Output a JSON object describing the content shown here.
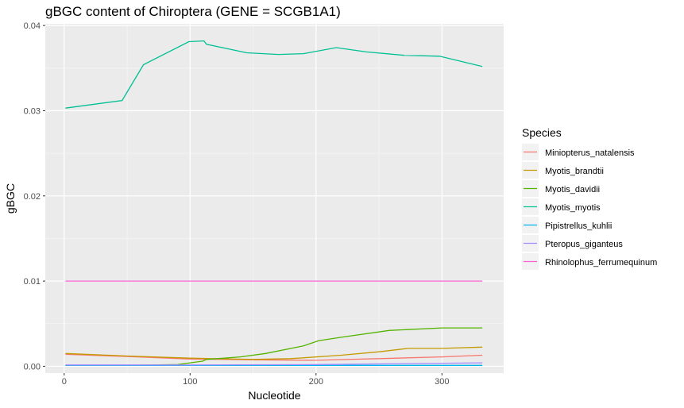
{
  "chart_data": {
    "type": "line",
    "title": "gBGC content of Chiroptera (GENE = SCGB1A1)",
    "xlabel": "Nucleotide",
    "ylabel": "gBGC",
    "xlim": [
      -15,
      349
    ],
    "ylim": [
      -0.0008,
      0.0402
    ],
    "x_ticks": [
      0,
      100,
      200,
      300
    ],
    "x_tick_labels": [
      "0",
      "100",
      "200",
      "300"
    ],
    "y_ticks": [
      0.0,
      0.01,
      0.02,
      0.03,
      0.04
    ],
    "y_tick_labels": [
      "0.00",
      "0.01",
      "0.02",
      "0.03",
      "0.04"
    ],
    "legend_title": "Species",
    "legend_position": "right",
    "grid": true,
    "series": [
      {
        "name": "Miniopterus_natalensis",
        "color": "#F8766D",
        "points": [
          [
            1,
            0.0014
          ],
          [
            50,
            0.00115
          ],
          [
            100,
            0.00085
          ],
          [
            150,
            0.00075
          ],
          [
            200,
            0.0007
          ],
          [
            250,
            0.0009
          ],
          [
            300,
            0.0011
          ],
          [
            332,
            0.0013
          ]
        ]
      },
      {
        "name": "Myotis_brandtii",
        "color": "#C49A00",
        "points": [
          [
            1,
            0.0015
          ],
          [
            50,
            0.0012
          ],
          [
            100,
            0.00095
          ],
          [
            150,
            0.0008
          ],
          [
            180,
            0.0009
          ],
          [
            220,
            0.0013
          ],
          [
            250,
            0.0017
          ],
          [
            273,
            0.0021
          ],
          [
            300,
            0.0021
          ],
          [
            332,
            0.00225
          ]
        ]
      },
      {
        "name": "Myotis_davidii",
        "color": "#53B400",
        "points": [
          [
            1,
            0.0001
          ],
          [
            50,
            0.0001
          ],
          [
            90,
            0.0002
          ],
          [
            110,
            0.0006
          ],
          [
            113,
            0.0008
          ],
          [
            140,
            0.0011
          ],
          [
            160,
            0.0015
          ],
          [
            190,
            0.0024
          ],
          [
            202,
            0.003
          ],
          [
            220,
            0.0034
          ],
          [
            258,
            0.0042
          ],
          [
            300,
            0.0045
          ],
          [
            332,
            0.0045
          ]
        ]
      },
      {
        "name": "Myotis_myotis",
        "color": "#00C094",
        "points": [
          [
            1,
            0.0303
          ],
          [
            46,
            0.0312
          ],
          [
            63,
            0.0354
          ],
          [
            99,
            0.0381
          ],
          [
            111,
            0.0382
          ],
          [
            113,
            0.0378
          ],
          [
            145,
            0.0368
          ],
          [
            170,
            0.0366
          ],
          [
            190,
            0.0367
          ],
          [
            216,
            0.0374
          ],
          [
            240,
            0.0369
          ],
          [
            270,
            0.0365
          ],
          [
            298,
            0.0364
          ],
          [
            332,
            0.0352
          ]
        ]
      },
      {
        "name": "Pipistrellus_kuhlii",
        "color": "#00B6EB",
        "points": [
          [
            1,
            0.0001
          ],
          [
            100,
            0.0001
          ],
          [
            200,
            0.0001
          ],
          [
            332,
            0.0001
          ]
        ]
      },
      {
        "name": "Pteropus_giganteus",
        "color": "#A58AFF",
        "points": [
          [
            1,
            0.00015
          ],
          [
            100,
            0.00015
          ],
          [
            200,
            0.0002
          ],
          [
            332,
            0.0004
          ]
        ]
      },
      {
        "name": "Rhinolophus_ferrumequinum",
        "color": "#FB61D7",
        "points": [
          [
            1,
            0.01
          ],
          [
            332,
            0.01
          ]
        ]
      }
    ]
  }
}
